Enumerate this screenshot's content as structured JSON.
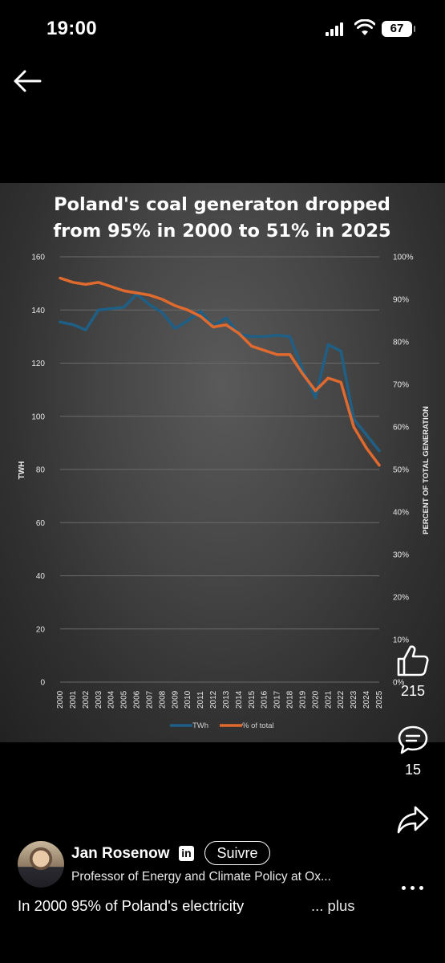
{
  "status_bar": {
    "time": "19:00",
    "battery": "67"
  },
  "chart_data": {
    "type": "line",
    "title_lines": [
      "Poland's coal generaton dropped",
      "from 95% in 2000 to 51% in 2025"
    ],
    "categories": [
      "2000",
      "2001",
      "2002",
      "2003",
      "2004",
      "2005",
      "2006",
      "2007",
      "2008",
      "2009",
      "2010",
      "2011",
      "2012",
      "2013",
      "2014",
      "2015",
      "2016",
      "2017",
      "2018",
      "2019",
      "2020",
      "2021",
      "2022",
      "2023",
      "2024",
      "2025"
    ],
    "y_left": {
      "label": "TWH",
      "min": 0,
      "max": 160,
      "ticks": [
        0,
        20,
        40,
        60,
        80,
        100,
        120,
        140,
        160
      ]
    },
    "y_right": {
      "label": "PERCENT OF TOTAL GENERATION",
      "min": 0,
      "max": 100,
      "ticks": [
        "0%",
        "10%",
        "20%",
        "30%",
        "40%",
        "50%",
        "60%",
        "70%",
        "80%",
        "90%",
        "100%"
      ]
    },
    "series": [
      {
        "name": "TWh",
        "axis": "left",
        "color": "#1f5f86",
        "values": [
          135.5,
          134.5,
          132.5,
          140,
          140.5,
          141,
          146,
          142,
          139,
          133,
          136,
          139.5,
          134,
          137,
          131,
          130,
          130,
          130.5,
          130,
          117.5,
          107,
          127,
          124.5,
          99,
          93,
          87
        ]
      },
      {
        "name": "% of total",
        "axis": "right",
        "color": "#e06a2e",
        "values": [
          95,
          94,
          93.5,
          94,
          93,
          92,
          91.5,
          91,
          90,
          88.5,
          87.5,
          86,
          83.5,
          84,
          82,
          79,
          78,
          77,
          77,
          72.5,
          68.5,
          71.5,
          70.5,
          60,
          55,
          51
        ]
      }
    ],
    "grid": true,
    "legend_position": "bottom"
  },
  "reactions": {
    "likes": {
      "count": "215",
      "icon": "thumbs-up-icon"
    },
    "comments": {
      "count": "15",
      "icon": "comment-icon"
    },
    "share": {
      "icon": "share-icon"
    }
  },
  "author": {
    "name": "Jan Rosenow",
    "badge": "in",
    "follow_label": "Suivre",
    "title": "Professor of Energy and Climate Policy at Ox..."
  },
  "caption": {
    "text": "In 2000 95% of Poland's electricity",
    "more": "... plus"
  }
}
